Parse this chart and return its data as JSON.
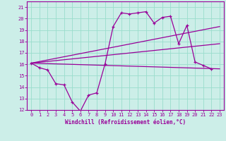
{
  "xlabel": "Windchill (Refroidissement éolien,°C)",
  "xlim": [
    -0.5,
    23.5
  ],
  "ylim": [
    12,
    21.5
  ],
  "xticks": [
    0,
    1,
    2,
    3,
    4,
    5,
    6,
    7,
    8,
    9,
    10,
    11,
    12,
    13,
    14,
    15,
    16,
    17,
    18,
    19,
    20,
    21,
    22,
    23
  ],
  "yticks": [
    12,
    13,
    14,
    15,
    16,
    17,
    18,
    19,
    20,
    21
  ],
  "bg_color": "#cceee8",
  "line_color": "#990099",
  "grid_color": "#99ddcc",
  "main_line": {
    "x": [
      0,
      1,
      2,
      3,
      4,
      5,
      6,
      7,
      8,
      9,
      10,
      11,
      12,
      13,
      14,
      15,
      16,
      17,
      18,
      19,
      20,
      21,
      22
    ],
    "y": [
      16.1,
      15.7,
      15.5,
      14.3,
      14.2,
      12.7,
      11.9,
      13.3,
      13.5,
      16.0,
      19.3,
      20.5,
      20.4,
      20.5,
      20.6,
      19.6,
      20.1,
      20.2,
      17.8,
      19.4,
      16.2,
      15.9,
      15.6
    ]
  },
  "diag_lines": [
    {
      "x": [
        0,
        23
      ],
      "y": [
        16.1,
        19.3
      ]
    },
    {
      "x": [
        0,
        23
      ],
      "y": [
        16.1,
        17.8
      ]
    },
    {
      "x": [
        0,
        23
      ],
      "y": [
        16.1,
        15.6
      ]
    }
  ]
}
